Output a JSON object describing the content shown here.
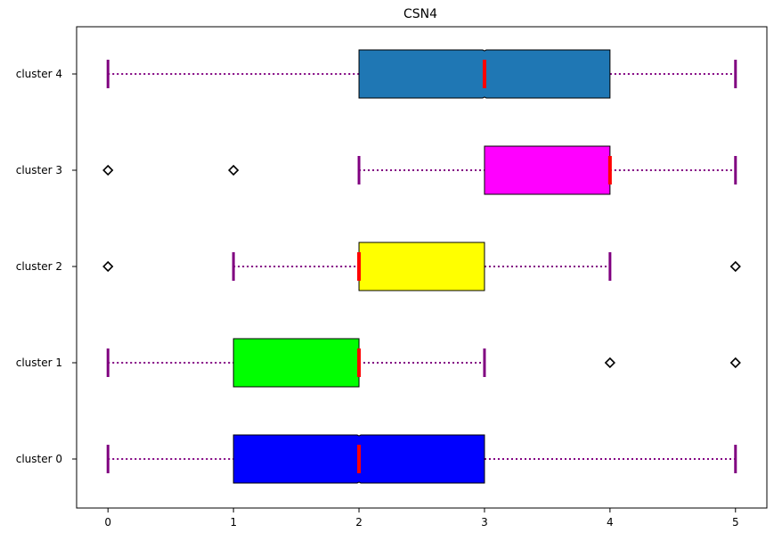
{
  "chart_data": {
    "type": "boxplot",
    "orientation": "horizontal",
    "title": "CSN4",
    "xlabel": "",
    "ylabel": "",
    "xlim": [
      -0.25,
      5.25
    ],
    "xticks": [
      "0",
      "1",
      "2",
      "3",
      "4",
      "5"
    ],
    "grid": false,
    "categories": [
      "cluster 0",
      "cluster 1",
      "cluster 2",
      "cluster 3",
      "cluster 4"
    ],
    "boxes": [
      {
        "category": "cluster 0",
        "whisker_low": 0,
        "q1": 1,
        "median": 2,
        "q3": 3,
        "whisker_high": 5,
        "notched": true,
        "outliers": [],
        "color": "#0000ff"
      },
      {
        "category": "cluster 1",
        "whisker_low": 0,
        "q1": 1,
        "median": 2,
        "q3": 2,
        "whisker_high": 3,
        "notched": false,
        "outliers": [
          4,
          5
        ],
        "color": "#00ff00"
      },
      {
        "category": "cluster 2",
        "whisker_low": 1,
        "q1": 2,
        "median": 2,
        "q3": 3,
        "whisker_high": 4,
        "notched": false,
        "outliers": [
          0,
          5
        ],
        "color": "#ffff00"
      },
      {
        "category": "cluster 3",
        "whisker_low": 2,
        "q1": 3,
        "median": 4,
        "q3": 4,
        "whisker_high": 5,
        "notched": false,
        "outliers": [
          0,
          1
        ],
        "color": "#ff00ff"
      },
      {
        "category": "cluster 4",
        "whisker_low": 0,
        "q1": 2,
        "median": 3,
        "q3": 4,
        "whisker_high": 5,
        "notched": true,
        "outliers": [],
        "color": "#1f77b4"
      }
    ],
    "colors": {
      "median": "#ff0000",
      "whisker": "#800080",
      "cap": "#800080",
      "box_edge": "#000000",
      "outlier_edge": "#000000"
    }
  }
}
